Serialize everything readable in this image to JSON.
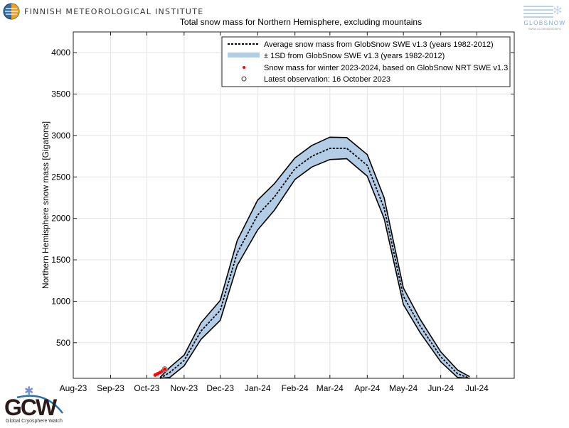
{
  "logos": {
    "fmi": "FINNISH METEOROLOGICAL INSTITUTE",
    "globsnow": "GLOBSNOW",
    "globsnow_url": "WWW.GLOBSNOW.INFO",
    "gcw": "GCW",
    "gcw_sub": "Global Cryosphere Watch"
  },
  "chart_data": {
    "type": "area",
    "title": "Total snow mass for Northern Hemisphere, excluding mountains",
    "xlabel": "",
    "ylabel": "Northern Hemisphere snow mass [Gigatons]",
    "xlim": [
      "2023-08-01",
      "2024-08-01"
    ],
    "ylim": [
      70,
      4250
    ],
    "grid": true,
    "legend_position": "top-right",
    "x_ticks": [
      "Aug-23",
      "Sep-23",
      "Oct-23",
      "Nov-23",
      "Dec-23",
      "Jan-24",
      "Feb-24",
      "Mar-24",
      "Apr-24",
      "May-24",
      "Jun-24",
      "Jul-24"
    ],
    "x_tick_dates": [
      "2023-08-01",
      "2023-09-01",
      "2023-10-01",
      "2023-11-01",
      "2023-12-01",
      "2024-01-01",
      "2024-02-01",
      "2024-03-01",
      "2024-04-01",
      "2024-05-01",
      "2024-06-01",
      "2024-07-01"
    ],
    "y_ticks": [
      500,
      1000,
      1500,
      2000,
      2500,
      3000,
      3500,
      4000
    ],
    "legend": [
      "Average snow mass from GlobSnow SWE v1.3 (years 1982-2012)",
      "± 1SD from GlobSnow SWE v1.3 (years 1982-2012)",
      "Snow mass for winter 2023-2024, based on GlobSnow NRT SWE v1.3",
      "Latest observation: 16 October 2023"
    ],
    "colors": {
      "mean": "#000000",
      "band": "#b3cde6",
      "observation": "#ff0000",
      "latest": "#888888"
    },
    "mean_series": {
      "name": "Average snow mass from GlobSnow SWE v1.3 (years 1982-2012)",
      "dates": [
        "2023-10-12",
        "2023-10-20",
        "2023-11-01",
        "2023-11-15",
        "2023-12-01",
        "2023-12-15",
        "2024-01-01",
        "2024-01-15",
        "2024-02-01",
        "2024-02-15",
        "2024-03-01",
        "2024-03-15",
        "2024-04-01",
        "2024-04-15",
        "2024-05-01",
        "2024-05-15",
        "2024-06-01",
        "2024-06-15",
        "2024-06-25"
      ],
      "mean": [
        70,
        140,
        285,
        640,
        890,
        1580,
        2040,
        2260,
        2600,
        2750,
        2845,
        2845,
        2640,
        2125,
        1060,
        700,
        330,
        125,
        70
      ],
      "lower": [
        70,
        80,
        220,
        540,
        770,
        1430,
        1860,
        2100,
        2470,
        2620,
        2710,
        2720,
        2510,
        2000,
        960,
        620,
        270,
        80,
        70
      ],
      "upper": [
        80,
        200,
        350,
        740,
        1010,
        1730,
        2220,
        2420,
        2730,
        2880,
        2980,
        2975,
        2770,
        2250,
        1160,
        780,
        390,
        170,
        90
      ]
    },
    "observations": {
      "name": "Snow mass for winter 2023-2024, based on GlobSnow NRT SWE v1.3",
      "dates": [
        "2023-10-08",
        "2023-10-10",
        "2023-10-12",
        "2023-10-14",
        "2023-10-16"
      ],
      "values": [
        110,
        125,
        140,
        160,
        180
      ]
    },
    "latest_observation": {
      "date": "2023-10-16",
      "value": 180
    }
  }
}
